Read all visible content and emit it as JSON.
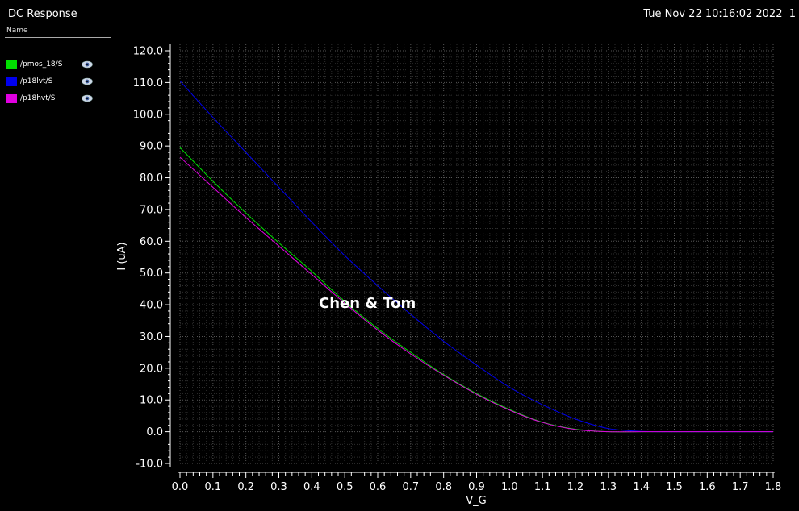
{
  "window": {
    "title": "DC Response",
    "timestamp": "Tue Nov 22 10:16:02 2022  1"
  },
  "legend": {
    "header": "Name",
    "items": [
      {
        "label": "/pmos_18/S",
        "color": "#00e000",
        "icon": "eye-icon"
      },
      {
        "label": "/p18lvt/S",
        "color": "#0000ee",
        "icon": "eye-icon"
      },
      {
        "label": "/p18hvt/S",
        "color": "#e000e0",
        "icon": "eye-icon"
      }
    ]
  },
  "chart_data": {
    "type": "line",
    "title": "",
    "xlabel": "V_G",
    "ylabel": "I (uA)",
    "xlim": [
      0.0,
      1.8
    ],
    "ylim": [
      -10.0,
      120.0
    ],
    "xticks": [
      "0.0",
      "0.1",
      "0.2",
      "0.3",
      "0.4",
      "0.5",
      "0.6",
      "0.7",
      "0.8",
      "0.9",
      "1.0",
      "1.1",
      "1.2",
      "1.3",
      "1.4",
      "1.5",
      "1.6",
      "1.7",
      "1.8"
    ],
    "yticks": [
      "-10.0",
      "0.0",
      "10.0",
      "20.0",
      "30.0",
      "40.0",
      "50.0",
      "60.0",
      "70.0",
      "80.0",
      "90.0",
      "100.0",
      "110.0",
      "120.0"
    ],
    "grid": true,
    "annotation": "Chen & Tom",
    "x": [
      0.0,
      0.1,
      0.2,
      0.3,
      0.4,
      0.5,
      0.6,
      0.7,
      0.8,
      0.9,
      1.0,
      1.1,
      1.2,
      1.3,
      1.4,
      1.5,
      1.6,
      1.7,
      1.8
    ],
    "series": [
      {
        "name": "/pmos_18/S",
        "color": "#00e000",
        "values": [
          89.5,
          78.9,
          68.9,
          59.5,
          50.5,
          41.0,
          32.5,
          25.0,
          18.0,
          12.0,
          7.0,
          3.0,
          0.8,
          0.0,
          0.0,
          0.0,
          0.0,
          0.0,
          0.0
        ]
      },
      {
        "name": "/p18lvt/S",
        "color": "#0000ee",
        "values": [
          110.5,
          99.0,
          88.0,
          77.0,
          66.0,
          55.5,
          46.0,
          37.0,
          28.5,
          21.0,
          14.0,
          8.5,
          4.0,
          1.0,
          0.1,
          0.0,
          0.0,
          0.0,
          0.0
        ]
      },
      {
        "name": "/p18hvt/S",
        "color": "#e000e0",
        "values": [
          86.5,
          77.0,
          67.5,
          58.5,
          49.5,
          40.5,
          32.0,
          24.5,
          17.8,
          11.8,
          6.8,
          2.9,
          0.7,
          0.0,
          0.0,
          0.0,
          0.0,
          0.0,
          0.0
        ]
      }
    ]
  }
}
